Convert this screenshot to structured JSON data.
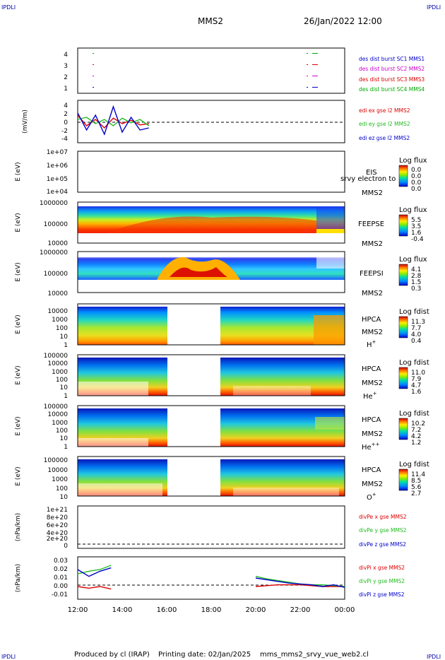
{
  "header": {
    "corner_label": "IPDLI",
    "mission": "MMS2",
    "datetime": "26/Jan/2022 12:00"
  },
  "footer": {
    "produced_by": "Produced by cl (IRAP)",
    "printing_date": "Printing date: 02/Jan/2025",
    "filename": "mms_mms2_srvy_vue_web2.cl"
  },
  "time_axis": {
    "ticks": [
      "12:00",
      "14:00",
      "16:00",
      "18:00",
      "20:00",
      "22:00",
      "00:00"
    ],
    "range_hours": [
      12,
      24
    ]
  },
  "colors": {
    "red": "#dd0000",
    "green": "#22bb22",
    "blue": "#0000cc",
    "magenta": "#cc00cc",
    "dark_green": "#00aa00"
  },
  "chart_data": [
    {
      "type": "line",
      "panel": "burst",
      "yticks": [
        "4",
        "3",
        "2",
        "1"
      ],
      "ylim": [
        0.5,
        4.5
      ],
      "series": [
        {
          "name": "des dist burst SC1 MMS1",
          "color": "#0000cc"
        },
        {
          "name": "des dist burst SC2 MMS2",
          "color": "#cc00cc"
        },
        {
          "name": "des dist burst SC3 MMS3",
          "color": "#dd0000"
        },
        {
          "name": "des dist burst SC4 MMS4",
          "color": "#00aa00"
        }
      ]
    },
    {
      "type": "line",
      "panel": "edi",
      "ylabel": "(mV/m)",
      "yticks": [
        "4",
        "2",
        "0",
        "-2",
        "-4"
      ],
      "ylim": [
        -5,
        5
      ],
      "x": [
        12.0,
        12.4,
        12.8,
        13.2,
        13.6,
        14.0,
        14.4,
        14.8,
        15.2
      ],
      "series": [
        {
          "name": "edi ex gse l2 MMS2",
          "color": "#dd0000",
          "values": [
            1.5,
            -1.0,
            0.5,
            -1.5,
            0.8,
            -0.5,
            0.3,
            -0.8,
            -0.5
          ]
        },
        {
          "name": "edi ey gse l2 MMS2",
          "color": "#22bb22",
          "values": [
            0.5,
            1.0,
            -0.5,
            0.5,
            -1.0,
            0.8,
            -0.3,
            0.5,
            -1.0
          ]
        },
        {
          "name": "edi ez gse l2 MMS2",
          "color": "#0000cc",
          "values": [
            2.0,
            -2.0,
            1.5,
            -3.0,
            3.5,
            -2.5,
            1.0,
            -2.0,
            -1.5
          ]
        }
      ]
    },
    {
      "type": "heatmap",
      "panel": "EIS",
      "ylabel": "E (eV)",
      "yticks": [
        "1e+07",
        "1e+06",
        "1e+05",
        "1e+04"
      ],
      "instrument": "EIS",
      "instrument_overlap": "srvy electron to",
      "spacecraft": "MMS2",
      "colorbar_title": "Log flux",
      "colorbar_ticks": [
        "0.0",
        "0.0",
        "0.0",
        "0.0"
      ]
    },
    {
      "type": "heatmap",
      "panel": "FEEPSE",
      "ylabel": "E (eV)",
      "yticks": [
        "1000000",
        "100000",
        "10000"
      ],
      "instrument": "FEEPSE",
      "spacecraft": "MMS2",
      "colorbar_title": "Log flux",
      "colorbar_ticks": [
        "5.5",
        "3.5",
        "1.6",
        "-0.4"
      ]
    },
    {
      "type": "heatmap",
      "panel": "FEEPSI",
      "ylabel": "E (eV)",
      "yticks": [
        "1000000",
        "100000",
        "10000"
      ],
      "instrument": "FEEPSI",
      "spacecraft": "MMS2",
      "colorbar_title": "Log flux",
      "colorbar_ticks": [
        "4.1",
        "2.8",
        "1.5",
        "0.3"
      ]
    },
    {
      "type": "heatmap",
      "panel": "HPCA H+",
      "ylabel": "E (eV)",
      "yticks": [
        "10000",
        "1000",
        "100",
        "10",
        "1"
      ],
      "instrument": "HPCA",
      "spacecraft": "MMS2",
      "species": "H",
      "species_sup": "+",
      "colorbar_title": "Log fdist",
      "colorbar_ticks": [
        "11.3",
        "7.7",
        "4.0",
        "0.4"
      ]
    },
    {
      "type": "heatmap",
      "panel": "HPCA He+",
      "ylabel": "E (eV)",
      "yticks": [
        "100000",
        "10000",
        "1000",
        "100",
        "10",
        "1"
      ],
      "instrument": "HPCA",
      "spacecraft": "MMS2",
      "species": "He",
      "species_sup": "+",
      "colorbar_title": "Log fdist",
      "colorbar_ticks": [
        "11.0",
        "7.9",
        "4.7",
        "1.6"
      ]
    },
    {
      "type": "heatmap",
      "panel": "HPCA He++",
      "ylabel": "E (eV)",
      "yticks": [
        "100000",
        "10000",
        "1000",
        "100",
        "10",
        "1"
      ],
      "instrument": "HPCA",
      "spacecraft": "MMS2",
      "species": "He",
      "species_sup": "++",
      "colorbar_title": "Log fdist",
      "colorbar_ticks": [
        "10.2",
        "7.2",
        "4.2",
        "1.2"
      ]
    },
    {
      "type": "heatmap",
      "panel": "HPCA O+",
      "ylabel": "E (eV)",
      "yticks": [
        "100000",
        "10000",
        "1000",
        "100",
        "10"
      ],
      "instrument": "HPCA",
      "spacecraft": "MMS2",
      "species": "O",
      "species_sup": "+",
      "colorbar_title": "Log fdist",
      "colorbar_ticks": [
        "11.4",
        "8.5",
        "5.6",
        "2.7"
      ]
    },
    {
      "type": "line",
      "panel": "divPe",
      "ylabel": "(nPa/km)",
      "yticks": [
        "1e+21",
        "8e+20",
        "6e+20",
        "4e+20",
        "2e+20",
        "0"
      ],
      "ylim": [
        0,
        1.1e+21
      ],
      "series": [
        {
          "name": "divPe x gse MMS2",
          "color": "#dd0000"
        },
        {
          "name": "divPe y gse MMS2",
          "color": "#22bb22"
        },
        {
          "name": "divPe z gse MMS2",
          "color": "#0000cc"
        }
      ]
    },
    {
      "type": "line",
      "panel": "divPi",
      "ylabel": "(nPa/km)",
      "yticks": [
        "0.03",
        "0.02",
        "0.01",
        "0.00",
        "-0.01"
      ],
      "ylim": [
        -0.015,
        0.035
      ],
      "x": [
        12.0,
        12.5,
        13.0,
        13.5,
        20.0,
        20.5,
        21.0,
        21.5,
        22.0,
        22.5,
        23.0,
        23.5,
        24.0
      ],
      "series": [
        {
          "name": "divPi x gse MMS2",
          "color": "#dd0000",
          "values": [
            0.0,
            -0.002,
            0.0,
            -0.003,
            0.0,
            0.001,
            0.002,
            0.002,
            0.002,
            0.001,
            0.0,
            0.0,
            0.0
          ]
        },
        {
          "name": "divPi y gse MMS2",
          "color": "#22bb22",
          "values": [
            0.015,
            0.018,
            0.02,
            0.025,
            0.012,
            0.009,
            0.007,
            0.005,
            0.003,
            0.002,
            0.002,
            0.001,
            0.0
          ]
        },
        {
          "name": "divPi z gse MMS2",
          "color": "#0000cc",
          "values": [
            0.02,
            0.012,
            0.018,
            0.022,
            0.01,
            0.008,
            0.006,
            0.004,
            0.003,
            0.002,
            0.0,
            0.002,
            -0.001
          ]
        }
      ]
    }
  ]
}
